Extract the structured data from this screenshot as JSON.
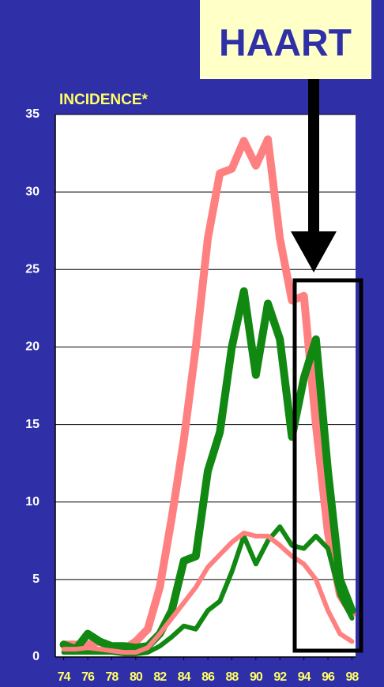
{
  "chart_data": {
    "type": "line",
    "annotations": [
      "HAART",
      "INCIDENCE*"
    ],
    "x": [
      74,
      75,
      76,
      77,
      78,
      79,
      80,
      81,
      82,
      83,
      84,
      85,
      86,
      87,
      88,
      89,
      90,
      91,
      92,
      93,
      94,
      95,
      96,
      97,
      98
    ],
    "xlim": [
      73.3,
      98.3
    ],
    "xticks": [
      74,
      76,
      78,
      80,
      82,
      84,
      86,
      88,
      90,
      92,
      94,
      96,
      98
    ],
    "ylim": [
      0,
      35
    ],
    "yticks": [
      0,
      5,
      10,
      15,
      20,
      25,
      30,
      35
    ],
    "grid": true,
    "series": [
      {
        "color": "#ff8080",
        "values": [
          0.8,
          0.8,
          0.8,
          1.0,
          0.5,
          0.5,
          1.0,
          1.8,
          4.5,
          9,
          14,
          20,
          27,
          31.2,
          31.5,
          33.3,
          31.7,
          33.4,
          27,
          23,
          23.3,
          15,
          8,
          4,
          2.8
        ]
      },
      {
        "color": "#118811",
        "values": [
          0.8,
          0.5,
          1.5,
          1.0,
          0.7,
          0.7,
          0.6,
          0.7,
          1.5,
          3,
          6.2,
          6.5,
          12,
          14.5,
          20,
          23.6,
          18.2,
          22.8,
          20.5,
          14.2,
          18,
          20.5,
          12,
          5,
          3
        ]
      },
      {
        "color": "#118811",
        "values": [
          0.3,
          0.3,
          0.3,
          0.3,
          0.3,
          0.2,
          0.2,
          0.3,
          0.7,
          1.3,
          2.0,
          1.8,
          3.0,
          3.6,
          5.5,
          7.8,
          6.0,
          7.5,
          8.4,
          7.2,
          7.0,
          7.8,
          7.0,
          4,
          2.5
        ]
      },
      {
        "color": "#ff8080",
        "values": [
          0.5,
          0.5,
          0.6,
          0.5,
          0.4,
          0.3,
          0.3,
          0.6,
          1.5,
          2.5,
          3.5,
          4.5,
          5.8,
          6.6,
          7.4,
          8.0,
          7.8,
          7.8,
          7.2,
          6.5,
          6.0,
          5.0,
          3.0,
          1.5,
          1.0
        ]
      }
    ]
  }
}
